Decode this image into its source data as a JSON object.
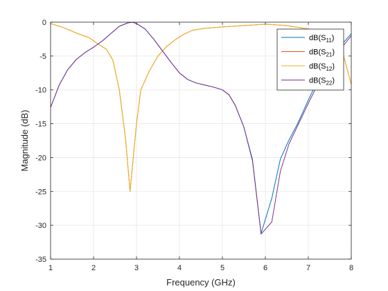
{
  "chart_data": {
    "type": "line",
    "xlabel": "Frequency (GHz)",
    "ylabel": "Magnitude (dB)",
    "xlim": [
      1,
      8
    ],
    "ylim": [
      -35,
      0
    ],
    "xticks": [
      1,
      2,
      3,
      4,
      5,
      6,
      7,
      8
    ],
    "xtick_labels": [
      "1",
      "2",
      "3",
      "4",
      "5",
      "6",
      "7",
      "8"
    ],
    "yticks": [
      0,
      -5,
      -10,
      -15,
      -20,
      -25,
      -30,
      -35
    ],
    "ytick_labels": [
      "0",
      "-5",
      "-10",
      "-15",
      "-20",
      "-25",
      "-30",
      "-35"
    ],
    "grid": true,
    "legend_position": "top-right",
    "colors": {
      "grid": "#e6e6e6",
      "axis": "#262626"
    },
    "series": [
      {
        "name": "dB(S11)",
        "legend_main": "dB(S",
        "legend_sub": "11",
        "legend_tail": ")",
        "color": "#0072BD",
        "x": [
          1.0,
          1.2,
          1.4,
          1.6,
          1.8,
          2.0,
          2.2,
          2.4,
          2.6,
          2.8,
          2.9,
          3.0,
          3.2,
          3.4,
          3.6,
          3.8,
          4.0,
          4.2,
          4.4,
          4.6,
          4.8,
          5.0,
          5.15,
          5.3,
          5.5,
          5.7,
          5.9,
          6.15,
          6.35,
          6.55,
          6.75,
          7.0,
          7.25,
          7.5,
          7.75,
          8.0
        ],
        "y": [
          -12.6,
          -9.3,
          -7.0,
          -5.5,
          -4.5,
          -3.7,
          -2.8,
          -1.7,
          -0.6,
          -0.1,
          0.0,
          -0.2,
          -1.0,
          -2.5,
          -4.2,
          -5.9,
          -7.5,
          -8.5,
          -9.0,
          -9.3,
          -9.6,
          -10.0,
          -10.7,
          -12.3,
          -15.5,
          -20.5,
          -31.2,
          -26.0,
          -20.2,
          -17.4,
          -15.0,
          -11.5,
          -8.2,
          -5.5,
          -3.5,
          -1.7
        ]
      },
      {
        "name": "dB(S21)",
        "legend_main": "dB(S",
        "legend_sub": "21",
        "legend_tail": ")",
        "color": "#D95319",
        "x": [
          1.0,
          1.3,
          1.6,
          1.9,
          2.1,
          2.3,
          2.45,
          2.6,
          2.75,
          2.85,
          3.0,
          3.1,
          3.3,
          3.5,
          3.7,
          3.9,
          4.1,
          4.3,
          4.6,
          5.0,
          5.5,
          6.0,
          6.5,
          7.0,
          7.3,
          7.6,
          7.8,
          8.0
        ],
        "y": [
          -0.2,
          -0.8,
          -1.6,
          -2.3,
          -3.2,
          -4.0,
          -5.6,
          -10.0,
          -17.5,
          -25.0,
          -15.0,
          -10.0,
          -7.2,
          -5.0,
          -3.6,
          -2.6,
          -1.8,
          -1.2,
          -0.9,
          -0.7,
          -0.5,
          -0.3,
          -0.5,
          -1.0,
          -1.5,
          -2.4,
          -4.5,
          -9.2
        ]
      },
      {
        "name": "dB(S12)",
        "legend_main": "dB(S",
        "legend_sub": "12",
        "legend_tail": ")",
        "color": "#EDB120",
        "x": [
          1.0,
          1.3,
          1.6,
          1.9,
          2.1,
          2.3,
          2.45,
          2.6,
          2.75,
          2.85,
          3.0,
          3.1,
          3.3,
          3.5,
          3.7,
          3.9,
          4.1,
          4.3,
          4.6,
          5.0,
          5.5,
          6.0,
          6.5,
          7.0,
          7.3,
          7.6,
          7.8,
          8.0
        ],
        "y": [
          -0.2,
          -0.8,
          -1.6,
          -2.3,
          -3.2,
          -4.0,
          -5.6,
          -10.0,
          -17.5,
          -25.0,
          -15.0,
          -10.0,
          -7.2,
          -5.0,
          -3.6,
          -2.6,
          -1.8,
          -1.2,
          -0.9,
          -0.7,
          -0.5,
          -0.3,
          -0.5,
          -1.0,
          -1.5,
          -2.4,
          -4.5,
          -9.2
        ]
      },
      {
        "name": "dB(S22)",
        "legend_main": "dB(S",
        "legend_sub": "22",
        "legend_tail": ")",
        "color": "#7E2F8E",
        "x": [
          1.0,
          1.2,
          1.4,
          1.6,
          1.8,
          2.0,
          2.2,
          2.4,
          2.6,
          2.8,
          2.9,
          3.0,
          3.2,
          3.4,
          3.6,
          3.8,
          4.0,
          4.2,
          4.4,
          4.6,
          4.8,
          5.0,
          5.15,
          5.3,
          5.5,
          5.7,
          5.9,
          6.15,
          6.35,
          6.55,
          6.75,
          7.0,
          7.25,
          7.5,
          7.75,
          8.0
        ],
        "y": [
          -12.6,
          -9.3,
          -7.0,
          -5.5,
          -4.5,
          -3.7,
          -2.8,
          -1.7,
          -0.6,
          -0.1,
          0.0,
          -0.2,
          -1.0,
          -2.5,
          -4.2,
          -5.9,
          -7.5,
          -8.5,
          -9.0,
          -9.3,
          -9.6,
          -10.0,
          -10.7,
          -12.3,
          -15.5,
          -20.3,
          -31.3,
          -29.5,
          -22.0,
          -18.0,
          -15.3,
          -12.0,
          -8.8,
          -6.0,
          -4.0,
          -2.0
        ]
      }
    ]
  }
}
